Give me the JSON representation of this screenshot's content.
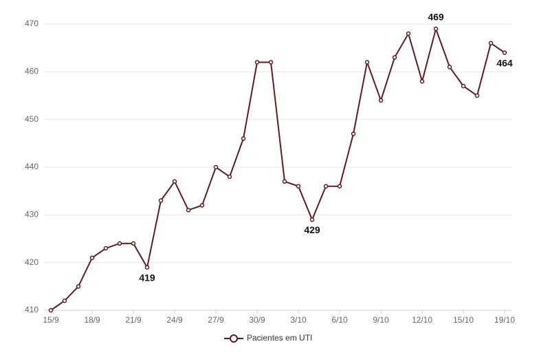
{
  "chart_data": {
    "type": "line",
    "categories": [
      "15/9",
      null,
      null,
      "18/9",
      null,
      null,
      "21/9",
      null,
      null,
      "24/9",
      null,
      null,
      "27/9",
      null,
      null,
      "30/9",
      null,
      null,
      "3/10",
      null,
      null,
      "6/10",
      null,
      null,
      "9/10",
      null,
      null,
      "12/10",
      null,
      null,
      "15/10",
      null,
      null,
      "19/10"
    ],
    "series": [
      {
        "name": "Pacientes em UTI",
        "color": "#5e1b1b",
        "values": [
          410,
          412,
          415,
          421,
          423,
          424,
          424,
          419,
          433,
          437,
          431,
          432,
          440,
          438,
          446,
          462,
          462,
          437,
          436,
          429,
          436,
          436,
          447,
          462,
          454,
          463,
          468,
          458,
          469,
          461,
          457,
          455,
          466,
          464
        ]
      }
    ],
    "labeled_points": [
      7,
      19,
      28,
      33
    ],
    "ylim": [
      410,
      470
    ],
    "yticks": [
      410,
      420,
      430,
      440,
      450,
      460,
      470
    ],
    "grid": true,
    "legend": "bottom"
  }
}
